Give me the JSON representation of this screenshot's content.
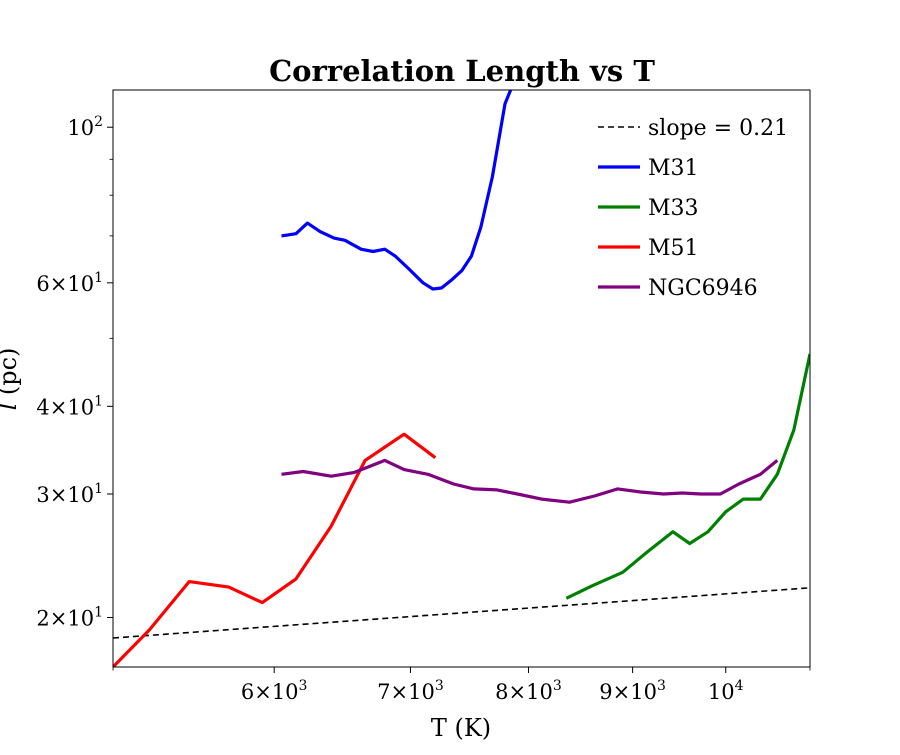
{
  "chart_data": {
    "type": "line",
    "title": "Correlation Length vs T",
    "xlabel": "T (K)",
    "ylabel": "l (pc)",
    "xscale": "log",
    "yscale": "log",
    "xlim": [
      5000,
      11000
    ],
    "ylim": [
      17,
      113
    ],
    "grid": false,
    "legend_position": "top-right",
    "x_ticks": [
      {
        "value": 6000,
        "mantissa": "6",
        "base": "10",
        "exp": "3"
      },
      {
        "value": 7000,
        "mantissa": "7",
        "base": "10",
        "exp": "3"
      },
      {
        "value": 8000,
        "mantissa": "8",
        "base": "10",
        "exp": "3"
      },
      {
        "value": 9000,
        "mantissa": "9",
        "base": "10",
        "exp": "3"
      },
      {
        "value": 10000,
        "mantissa": "",
        "base": "10",
        "exp": "4"
      }
    ],
    "y_ticks": [
      {
        "value": 20,
        "mantissa": "2",
        "base": "10",
        "exp": "1"
      },
      {
        "value": 30,
        "mantissa": "3",
        "base": "10",
        "exp": "1"
      },
      {
        "value": 40,
        "mantissa": "4",
        "base": "10",
        "exp": "1"
      },
      {
        "value": 60,
        "mantissa": "6",
        "base": "10",
        "exp": "1"
      },
      {
        "value": 100,
        "mantissa": "",
        "base": "10",
        "exp": "2"
      }
    ],
    "series": [
      {
        "name": "slope = 0.21",
        "color": "#000000",
        "dashed": true,
        "x": [
          5000,
          11000
        ],
        "y": [
          18.7,
          22.05
        ]
      },
      {
        "name": "M31",
        "color": "#0000ff",
        "dashed": false,
        "x": [
          6050,
          6150,
          6230,
          6320,
          6420,
          6500,
          6620,
          6710,
          6800,
          6880,
          6980,
          7100,
          7180,
          7250,
          7330,
          7420,
          7500,
          7580,
          7680,
          7790,
          7840
        ],
        "y": [
          70,
          70.5,
          73,
          71,
          69.5,
          69,
          67,
          66.5,
          67,
          65.5,
          63,
          60,
          58.8,
          59,
          60.5,
          62.5,
          65.5,
          72,
          85,
          108,
          113
        ]
      },
      {
        "name": "M33",
        "color": "#008000",
        "dashed": false,
        "x": [
          8350,
          8600,
          8900,
          9150,
          9420,
          9600,
          9800,
          10000,
          10200,
          10400,
          10600,
          10800,
          11000
        ],
        "y": [
          21.3,
          22.2,
          23.2,
          24.8,
          26.5,
          25.5,
          26.5,
          28.3,
          29.5,
          29.5,
          32,
          37,
          47.5
        ]
      },
      {
        "name": "M51",
        "color": "#ff0000",
        "dashed": false,
        "x": [
          5000,
          5210,
          5450,
          5700,
          5920,
          6150,
          6400,
          6650,
          6950,
          7200
        ],
        "y": [
          17,
          19.2,
          22.5,
          22.1,
          21,
          22.7,
          27,
          33.5,
          36.5,
          33.8
        ]
      },
      {
        "name": "NGC6946",
        "color": "#800080",
        "dashed": false,
        "x": [
          6050,
          6200,
          6400,
          6570,
          6800,
          6950,
          7140,
          7350,
          7520,
          7720,
          7900,
          8120,
          8380,
          8620,
          8850,
          9080,
          9320,
          9520,
          9720,
          9940,
          10150,
          10400,
          10600
        ],
        "y": [
          32,
          32.3,
          31.8,
          32.2,
          33.5,
          32.5,
          32,
          31,
          30.5,
          30.4,
          30,
          29.5,
          29.2,
          29.8,
          30.5,
          30.2,
          30,
          30.1,
          30,
          30,
          31,
          32,
          33.5
        ]
      }
    ]
  }
}
